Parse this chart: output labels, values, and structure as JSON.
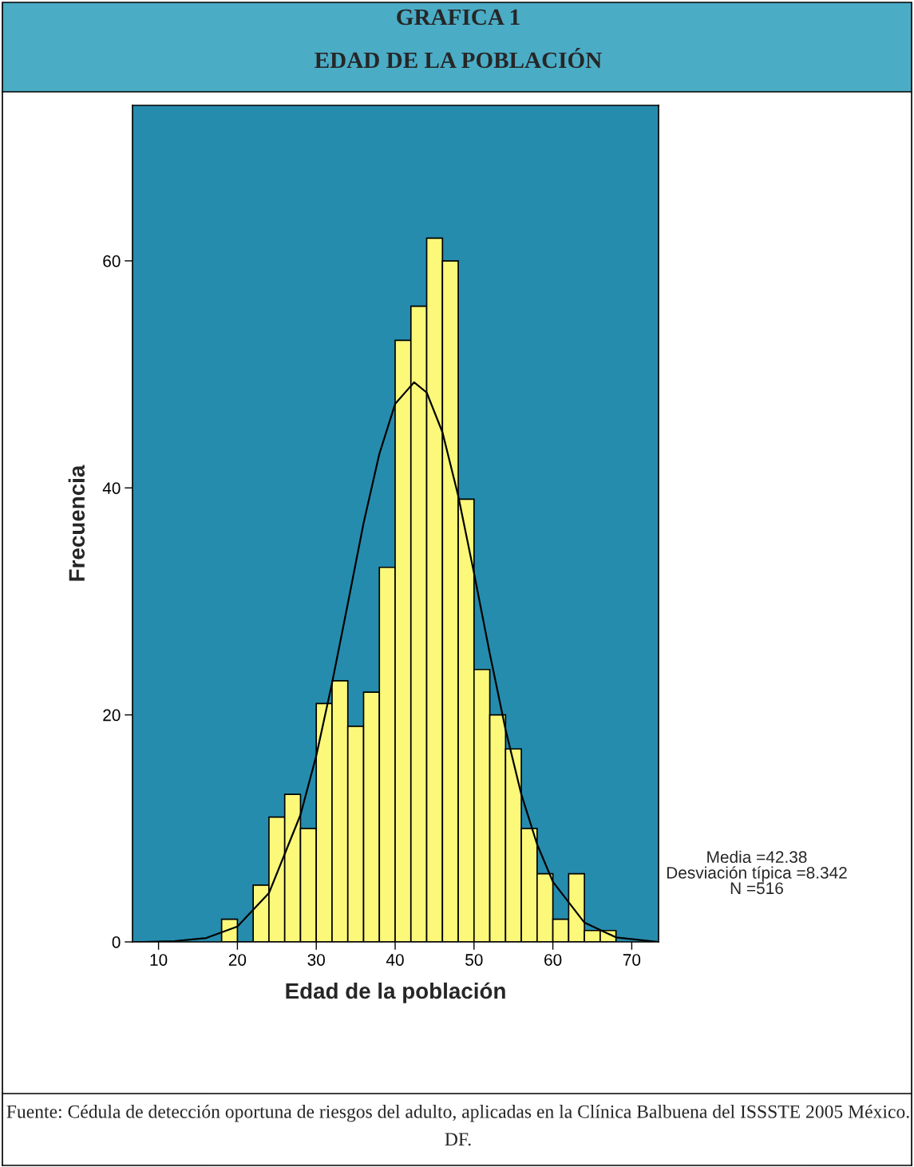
{
  "chart_data": {
    "type": "histogram",
    "title": "GRAFICA 1",
    "subtitle": "EDAD DE LA POBLACIÓN",
    "xlabel": "Edad de la población",
    "ylabel": "Frecuencia",
    "bins": [
      18,
      20,
      22,
      24,
      26,
      28,
      30,
      32,
      34,
      36,
      38,
      40,
      42,
      44,
      46,
      48,
      50,
      52,
      54,
      56,
      58,
      60,
      62,
      64,
      66,
      68
    ],
    "values": [
      2,
      0,
      5,
      11,
      13,
      10,
      21,
      23,
      19,
      22,
      33,
      53,
      56,
      62,
      60,
      39,
      24,
      20,
      17,
      10,
      6,
      2,
      6,
      1,
      1
    ],
    "color": "#fbf87a",
    "series": [
      {
        "type": "line",
        "color": "#000000",
        "x": [
          7,
          8,
          12,
          16,
          20,
          24,
          28,
          30,
          32,
          34,
          36,
          38,
          40,
          42.4,
          44,
          46,
          48,
          50,
          52,
          54,
          56,
          58,
          60,
          64,
          68,
          72,
          73.4
        ],
        "values": [
          0,
          0,
          0.07,
          0.33,
          1.35,
          4.3,
          11.2,
          16.4,
          22.8,
          29.8,
          36.9,
          43.0,
          47.4,
          49.3,
          48.4,
          44.9,
          39.3,
          32.5,
          25.4,
          18.7,
          13.0,
          8.6,
          5.3,
          1.7,
          0.4,
          0.1,
          0
        ]
      }
    ],
    "xlim": [
      6.7,
      73.4
    ],
    "ylim": [
      0,
      73.7
    ],
    "xticks": [
      10,
      20,
      30,
      40,
      50,
      60,
      70
    ],
    "yticks": [
      0,
      20,
      40,
      60
    ],
    "grid": false,
    "annotations": [
      "Media =42.38\nDesviación típica =8.342\nN =516",
      "Fuente: Cédula de detección oportuna de riesgos del adulto, aplicadas en la Clínica Balbuena del ISSSTE 2005 México. DF."
    ]
  }
}
